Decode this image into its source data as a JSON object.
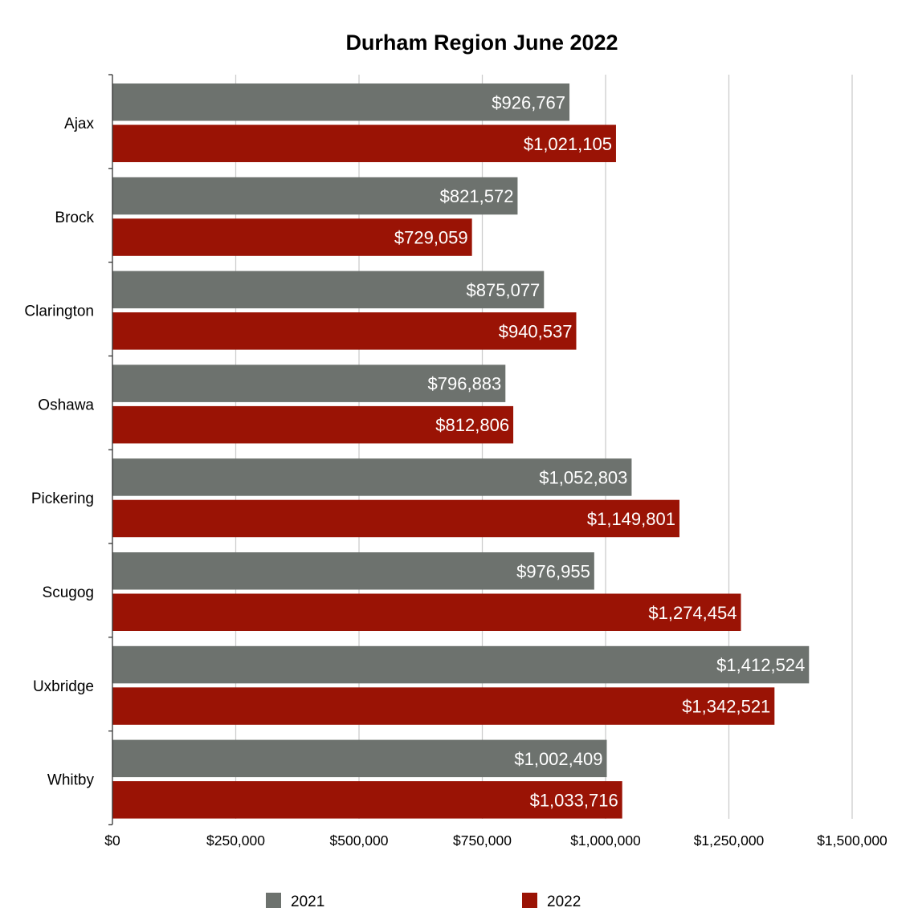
{
  "chart_data": {
    "type": "bar",
    "orientation": "horizontal",
    "title": "Durham Region June 2022",
    "xlabel": "",
    "ylabel": "",
    "categories": [
      "Ajax",
      "Brock",
      "Clarington",
      "Oshawa",
      "Pickering",
      "Scugog",
      "Uxbridge",
      "Whitby"
    ],
    "series": [
      {
        "name": "2021",
        "color": "#6d726e",
        "values": [
          926767,
          821572,
          875077,
          796883,
          1052803,
          976955,
          1412524,
          1002409
        ],
        "labels": [
          "$926,767",
          "$821,572",
          "$875,077",
          "$796,883",
          "$1,052,803",
          "$976,955",
          "$1,412,524",
          "$1,002,409"
        ]
      },
      {
        "name": "2022",
        "color": "#9a1305",
        "values": [
          1021105,
          729059,
          940537,
          812806,
          1149801,
          1274454,
          1342521,
          1033716
        ],
        "labels": [
          "$1,021,105",
          "$729,059",
          "$940,537",
          "$812,806",
          "$1,149,801",
          "$1,274,454",
          "$1,342,521",
          "$1,033,716"
        ]
      }
    ],
    "xlim": [
      0,
      1500000
    ],
    "ticks": [
      0,
      250000,
      500000,
      750000,
      1000000,
      1250000,
      1500000
    ],
    "tick_labels": [
      "$0",
      "$250,000",
      "$500,000",
      "$750,000",
      "$1,000,000",
      "$1,250,000",
      "$1,500,000"
    ],
    "grid": true,
    "legend_position": "bottom"
  }
}
